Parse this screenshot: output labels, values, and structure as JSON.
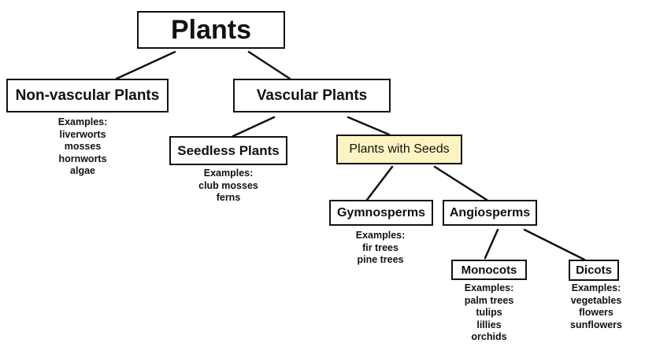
{
  "nodes": {
    "plants": {
      "label": "Plants"
    },
    "nonvascular": {
      "label": "Non-vascular Plants",
      "examples_title": "Examples:",
      "examples": [
        "liverworts",
        "mosses",
        "hornworts",
        "algae"
      ]
    },
    "vascular": {
      "label": "Vascular Plants"
    },
    "seedless": {
      "label": "Seedless Plants",
      "examples_title": "Examples:",
      "examples": [
        "club mosses",
        "ferns"
      ]
    },
    "withseeds": {
      "label": "Plants with Seeds"
    },
    "gymnosperms": {
      "label": "Gymnosperms",
      "examples_title": "Examples:",
      "examples": [
        "fir trees",
        "pine trees"
      ]
    },
    "angiosperms": {
      "label": "Angiosperms"
    },
    "monocots": {
      "label": "Monocots",
      "examples_title": "Examples:",
      "examples": [
        "palm trees",
        "tulips",
        "lillies",
        "orchids"
      ]
    },
    "dicots": {
      "label": "Dicots",
      "examples_title": "Examples:",
      "examples": [
        "vegetables",
        "flowers",
        "sunflowers"
      ]
    }
  },
  "colors": {
    "highlight": "#fbf4c2",
    "line": "#111111"
  }
}
